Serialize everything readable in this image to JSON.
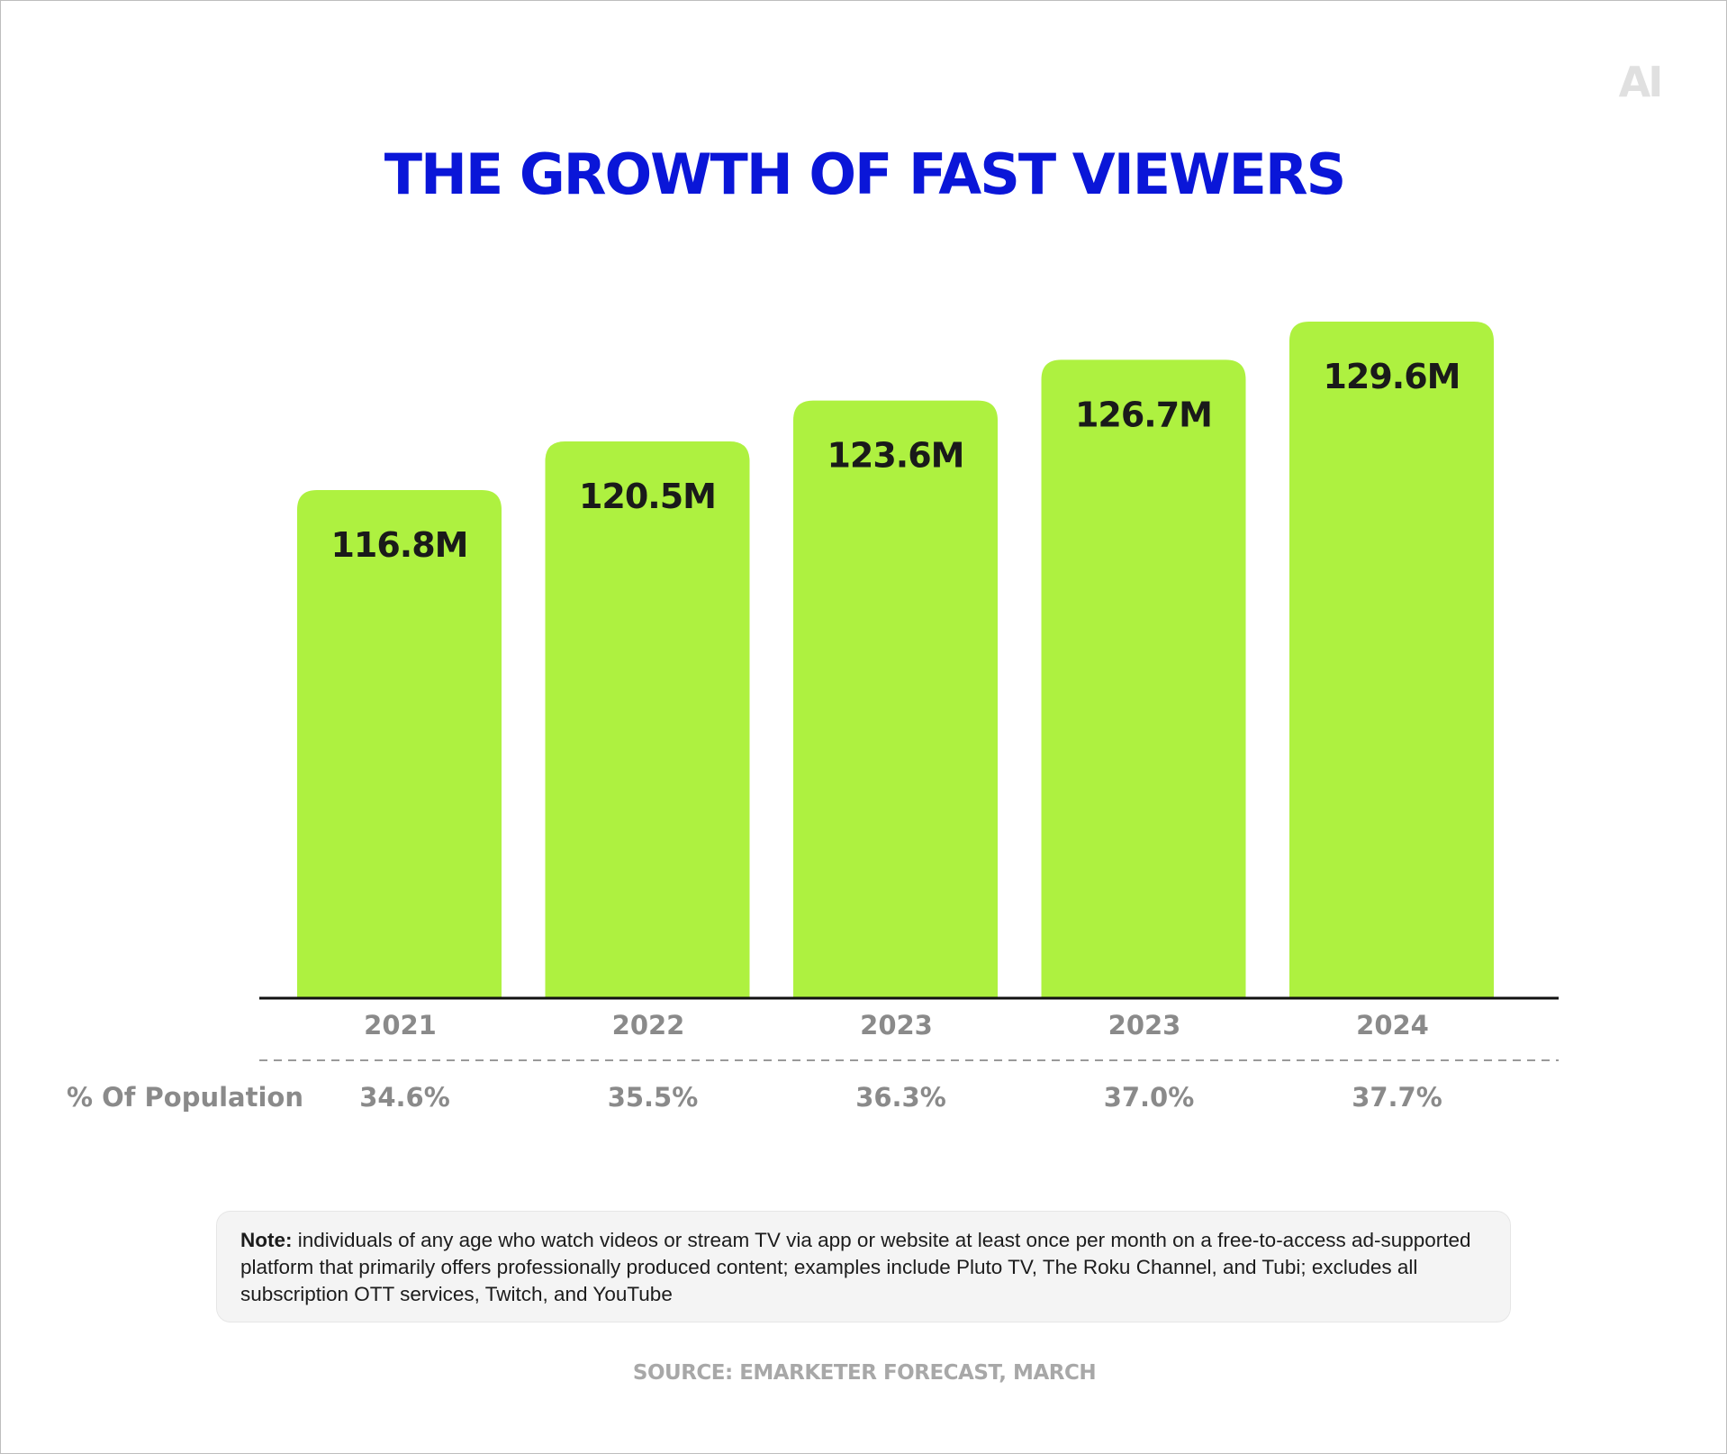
{
  "logo": {
    "text": "AI"
  },
  "title": "THE GROWTH OF FAST VIEWERS",
  "chart_data": {
    "type": "bar",
    "title": "THE GROWTH OF FAST VIEWERS",
    "categories": [
      "2021",
      "2022",
      "2023",
      "2023",
      "2024"
    ],
    "values": [
      116.8,
      120.5,
      123.6,
      126.7,
      129.6
    ],
    "value_labels": [
      "116.8M",
      "120.5M",
      "123.6M",
      "126.7M",
      "129.6M"
    ],
    "unit": "M",
    "secondary_row": {
      "label": "% Of Population",
      "values": [
        "34.6%",
        "35.5%",
        "36.3%",
        "37.0%",
        "37.7%"
      ]
    },
    "bar_color": "#aef140",
    "grid": false,
    "legend": "none"
  },
  "note": {
    "label": "Note:",
    "text": "individuals of any age who watch videos or stream TV via app or website at least once per month on a  free-to-access ad-supported platform that primarily offers professionally produced content;  examples include Pluto TV, The Roku Channel, and Tubi; excludes all subscription OTT services, Twitch, and YouTube"
  },
  "source": "SOURCE: EMARKETER FORECAST, MARCH",
  "colors": {
    "title": "#0a16d8",
    "bar": "#aef140",
    "muted_text": "#8a8a8a"
  }
}
